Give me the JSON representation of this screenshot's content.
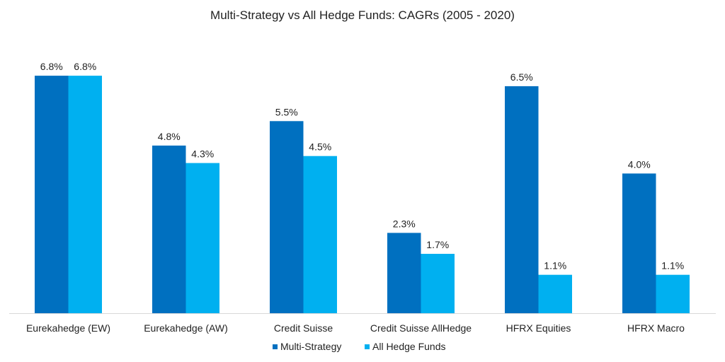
{
  "chart_data": {
    "type": "bar",
    "title": "Multi-Strategy vs All Hedge Funds: CAGRs (2005 - 2020)",
    "categories": [
      "Eurekahedge (EW)",
      "Eurekahedge (AW)",
      "Credit Suisse",
      "Credit Suisse AllHedge",
      "HFRX Equities",
      "HFRX Macro"
    ],
    "series": [
      {
        "name": "Multi-Strategy",
        "values": [
          6.8,
          4.8,
          5.5,
          2.3,
          6.5,
          4.0
        ],
        "labels": [
          "6.8%",
          "4.8%",
          "5.5%",
          "2.3%",
          "6.5%",
          "4.0%"
        ],
        "color": "#0070C0"
      },
      {
        "name": "All Hedge Funds",
        "values": [
          6.8,
          4.3,
          4.5,
          1.7,
          1.1,
          1.1
        ],
        "labels": [
          "6.8%",
          "4.3%",
          "4.5%",
          "1.7%",
          "1.1%",
          "1.1%"
        ],
        "color": "#00B0F0"
      }
    ],
    "unit": "%",
    "ylim": [
      0,
      6.8
    ],
    "grid": false,
    "legend": "bottom"
  }
}
